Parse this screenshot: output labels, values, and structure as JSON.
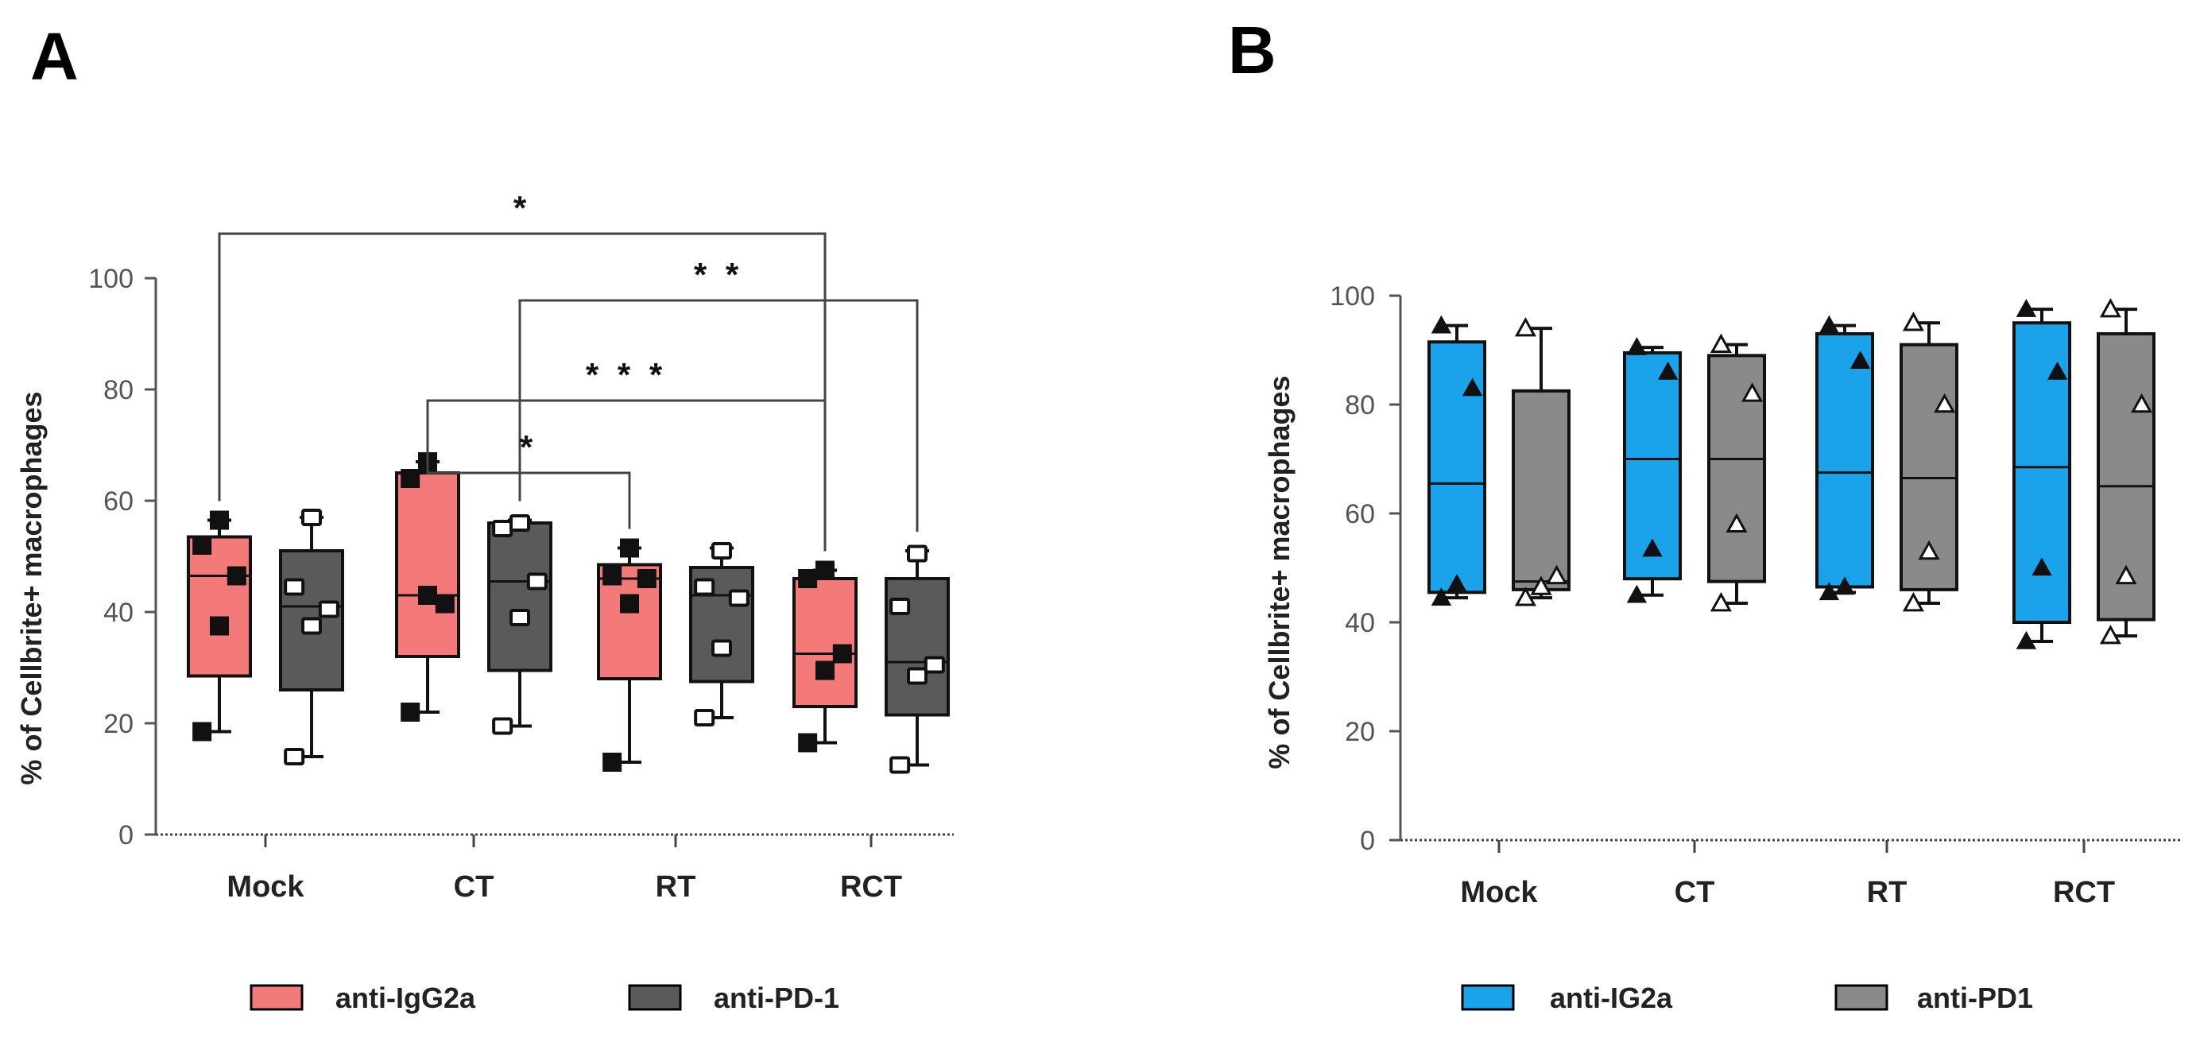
{
  "panels": [
    {
      "letter": "A",
      "ylabel": "% of Cellbrite+ macrophages",
      "yticks": [
        0,
        20,
        40,
        60,
        80,
        100
      ],
      "ylim": [
        0,
        100
      ],
      "groups": [
        "Mock",
        "CT",
        "RT",
        "RCT"
      ],
      "legend": [
        "anti-IgG2a",
        "anti-PD-1"
      ]
    },
    {
      "letter": "B",
      "ylabel": "% of Cellbrite+ macrophages",
      "yticks": [
        0,
        20,
        40,
        60,
        80,
        100
      ],
      "ylim": [
        0,
        100
      ],
      "groups": [
        "Mock",
        "CT",
        "RT",
        "RCT"
      ],
      "legend": [
        "anti-IG2a",
        "anti-PD1"
      ]
    }
  ],
  "colors": {
    "A_igg": "#f47a7a",
    "A_pd1": "#5a5a5a",
    "B_igg": "#1aa3ea",
    "B_pd1": "#8a8a8a"
  },
  "chart_data": [
    {
      "type": "box",
      "panel": "A",
      "ylabel": "% of Cellbrite+ macrophages",
      "ylim": [
        0,
        100
      ],
      "categories": [
        "Mock",
        "CT",
        "RT",
        "RCT"
      ],
      "series": [
        {
          "name": "anti-IgG2a",
          "marker": "filled-square",
          "boxes": [
            {
              "min": 18.5,
              "q1": 28.5,
              "median": 46.5,
              "q3": 53.5,
              "max": 56.5,
              "points": [
                18.5,
                37.5,
                46.5,
                52,
                56.5
              ]
            },
            {
              "min": 22,
              "q1": 32,
              "median": 43,
              "q3": 65,
              "max": 67,
              "points": [
                22,
                43,
                41.5,
                64,
                67
              ]
            },
            {
              "min": 13,
              "q1": 28,
              "median": 46,
              "q3": 48.5,
              "max": 51.5,
              "points": [
                13,
                41.5,
                46,
                46.5,
                51.5
              ]
            },
            {
              "min": 16.5,
              "q1": 23,
              "median": 32.5,
              "q3": 46,
              "max": 47.5,
              "points": [
                16.5,
                29.5,
                32.5,
                46,
                47.5
              ]
            }
          ]
        },
        {
          "name": "anti-PD-1",
          "marker": "open-square",
          "boxes": [
            {
              "min": 14,
              "q1": 26,
              "median": 41,
              "q3": 51,
              "max": 57,
              "points": [
                14,
                37.5,
                40.5,
                44.5,
                57
              ]
            },
            {
              "min": 19.5,
              "q1": 29.5,
              "median": 45.5,
              "q3": 56,
              "max": 56.5,
              "points": [
                19.5,
                39,
                45.5,
                55,
                56
              ]
            },
            {
              "min": 21,
              "q1": 27.5,
              "median": 43,
              "q3": 48,
              "max": 51.5,
              "points": [
                21,
                33.5,
                42.5,
                44.5,
                51
              ]
            },
            {
              "min": 12.5,
              "q1": 21.5,
              "median": 31,
              "q3": 46,
              "max": 51,
              "points": [
                12.5,
                28.5,
                30.5,
                41,
                50.5
              ]
            }
          ]
        }
      ],
      "significance": [
        {
          "from": "Mock anti-IgG2a",
          "to": "RCT anti-IgG2a",
          "label": "*"
        },
        {
          "from": "CT anti-PD-1",
          "to": "RCT anti-PD-1",
          "label": "* *"
        },
        {
          "from": "CT anti-IgG2a",
          "to": "RCT anti-IgG2a",
          "label": "* * *"
        },
        {
          "from": "CT anti-IgG2a",
          "to": "RT anti-IgG2a",
          "label": "*"
        }
      ]
    },
    {
      "type": "box",
      "panel": "B",
      "ylabel": "% of Cellbrite+ macrophages",
      "ylim": [
        0,
        100
      ],
      "categories": [
        "Mock",
        "CT",
        "RT",
        "RCT"
      ],
      "series": [
        {
          "name": "anti-IG2a",
          "marker": "filled-triangle",
          "boxes": [
            {
              "min": 44.5,
              "q1": 45.5,
              "median": 65.5,
              "q3": 91.5,
              "max": 94.5,
              "points": [
                44.5,
                47,
                83,
                94.5
              ]
            },
            {
              "min": 45,
              "q1": 48,
              "median": 70,
              "q3": 89.5,
              "max": 90.5,
              "points": [
                45,
                53.5,
                86,
                90.5
              ]
            },
            {
              "min": 45.5,
              "q1": 46.5,
              "median": 67.5,
              "q3": 93,
              "max": 94.5,
              "points": [
                45.5,
                46.5,
                88,
                94.5
              ]
            },
            {
              "min": 36.5,
              "q1": 40,
              "median": 68.5,
              "q3": 95,
              "max": 97.5,
              "points": [
                36.5,
                50,
                86,
                97.5
              ]
            }
          ]
        },
        {
          "name": "anti-PD1",
          "marker": "open-triangle",
          "boxes": [
            {
              "min": 44.5,
              "q1": 46,
              "median": 47.5,
              "q3": 82.5,
              "max": 94,
              "points": [
                44.5,
                46.5,
                48.5,
                94
              ]
            },
            {
              "min": 43.5,
              "q1": 47.5,
              "median": 70,
              "q3": 89,
              "max": 91,
              "points": [
                43.5,
                58,
                82,
                91
              ]
            },
            {
              "min": 43.5,
              "q1": 46,
              "median": 66.5,
              "q3": 91,
              "max": 95,
              "points": [
                43.5,
                53,
                80,
                95
              ]
            },
            {
              "min": 37.5,
              "q1": 40.5,
              "median": 65,
              "q3": 93,
              "max": 97.5,
              "points": [
                37.5,
                48.5,
                80,
                97.5
              ]
            }
          ]
        }
      ]
    }
  ]
}
